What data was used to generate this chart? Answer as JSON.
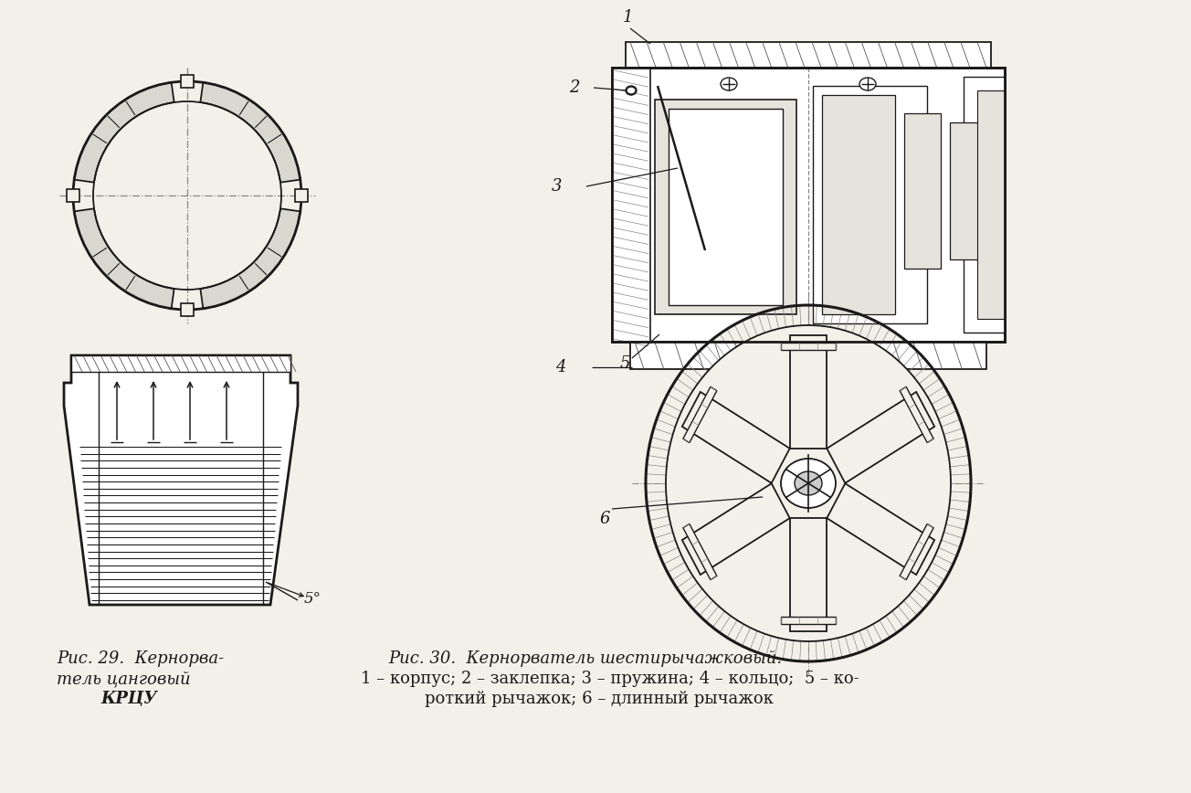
{
  "bg_color": "#f2f0e8",
  "line_color": "#1a1a1a",
  "caption29_line1": "Рис. 29.  Кернорва-",
  "caption29_line2": "тель цанговый",
  "caption29_line3": "КРЦУ",
  "caption30_title": "Рис. 30.  Кернорватель шестирычажковый.",
  "caption30_parts": "1 – корпус; 2 – заклепка; 3 – пружина; 4 – кольцо;  5 – ко-",
  "caption30_parts2": "роткий рычажок; 6 – длинный рычажок",
  "label1": "1",
  "label2": "2",
  "label3": "3",
  "label4": "4",
  "label5": "5",
  "label6": "6",
  "angle_label": "5°"
}
